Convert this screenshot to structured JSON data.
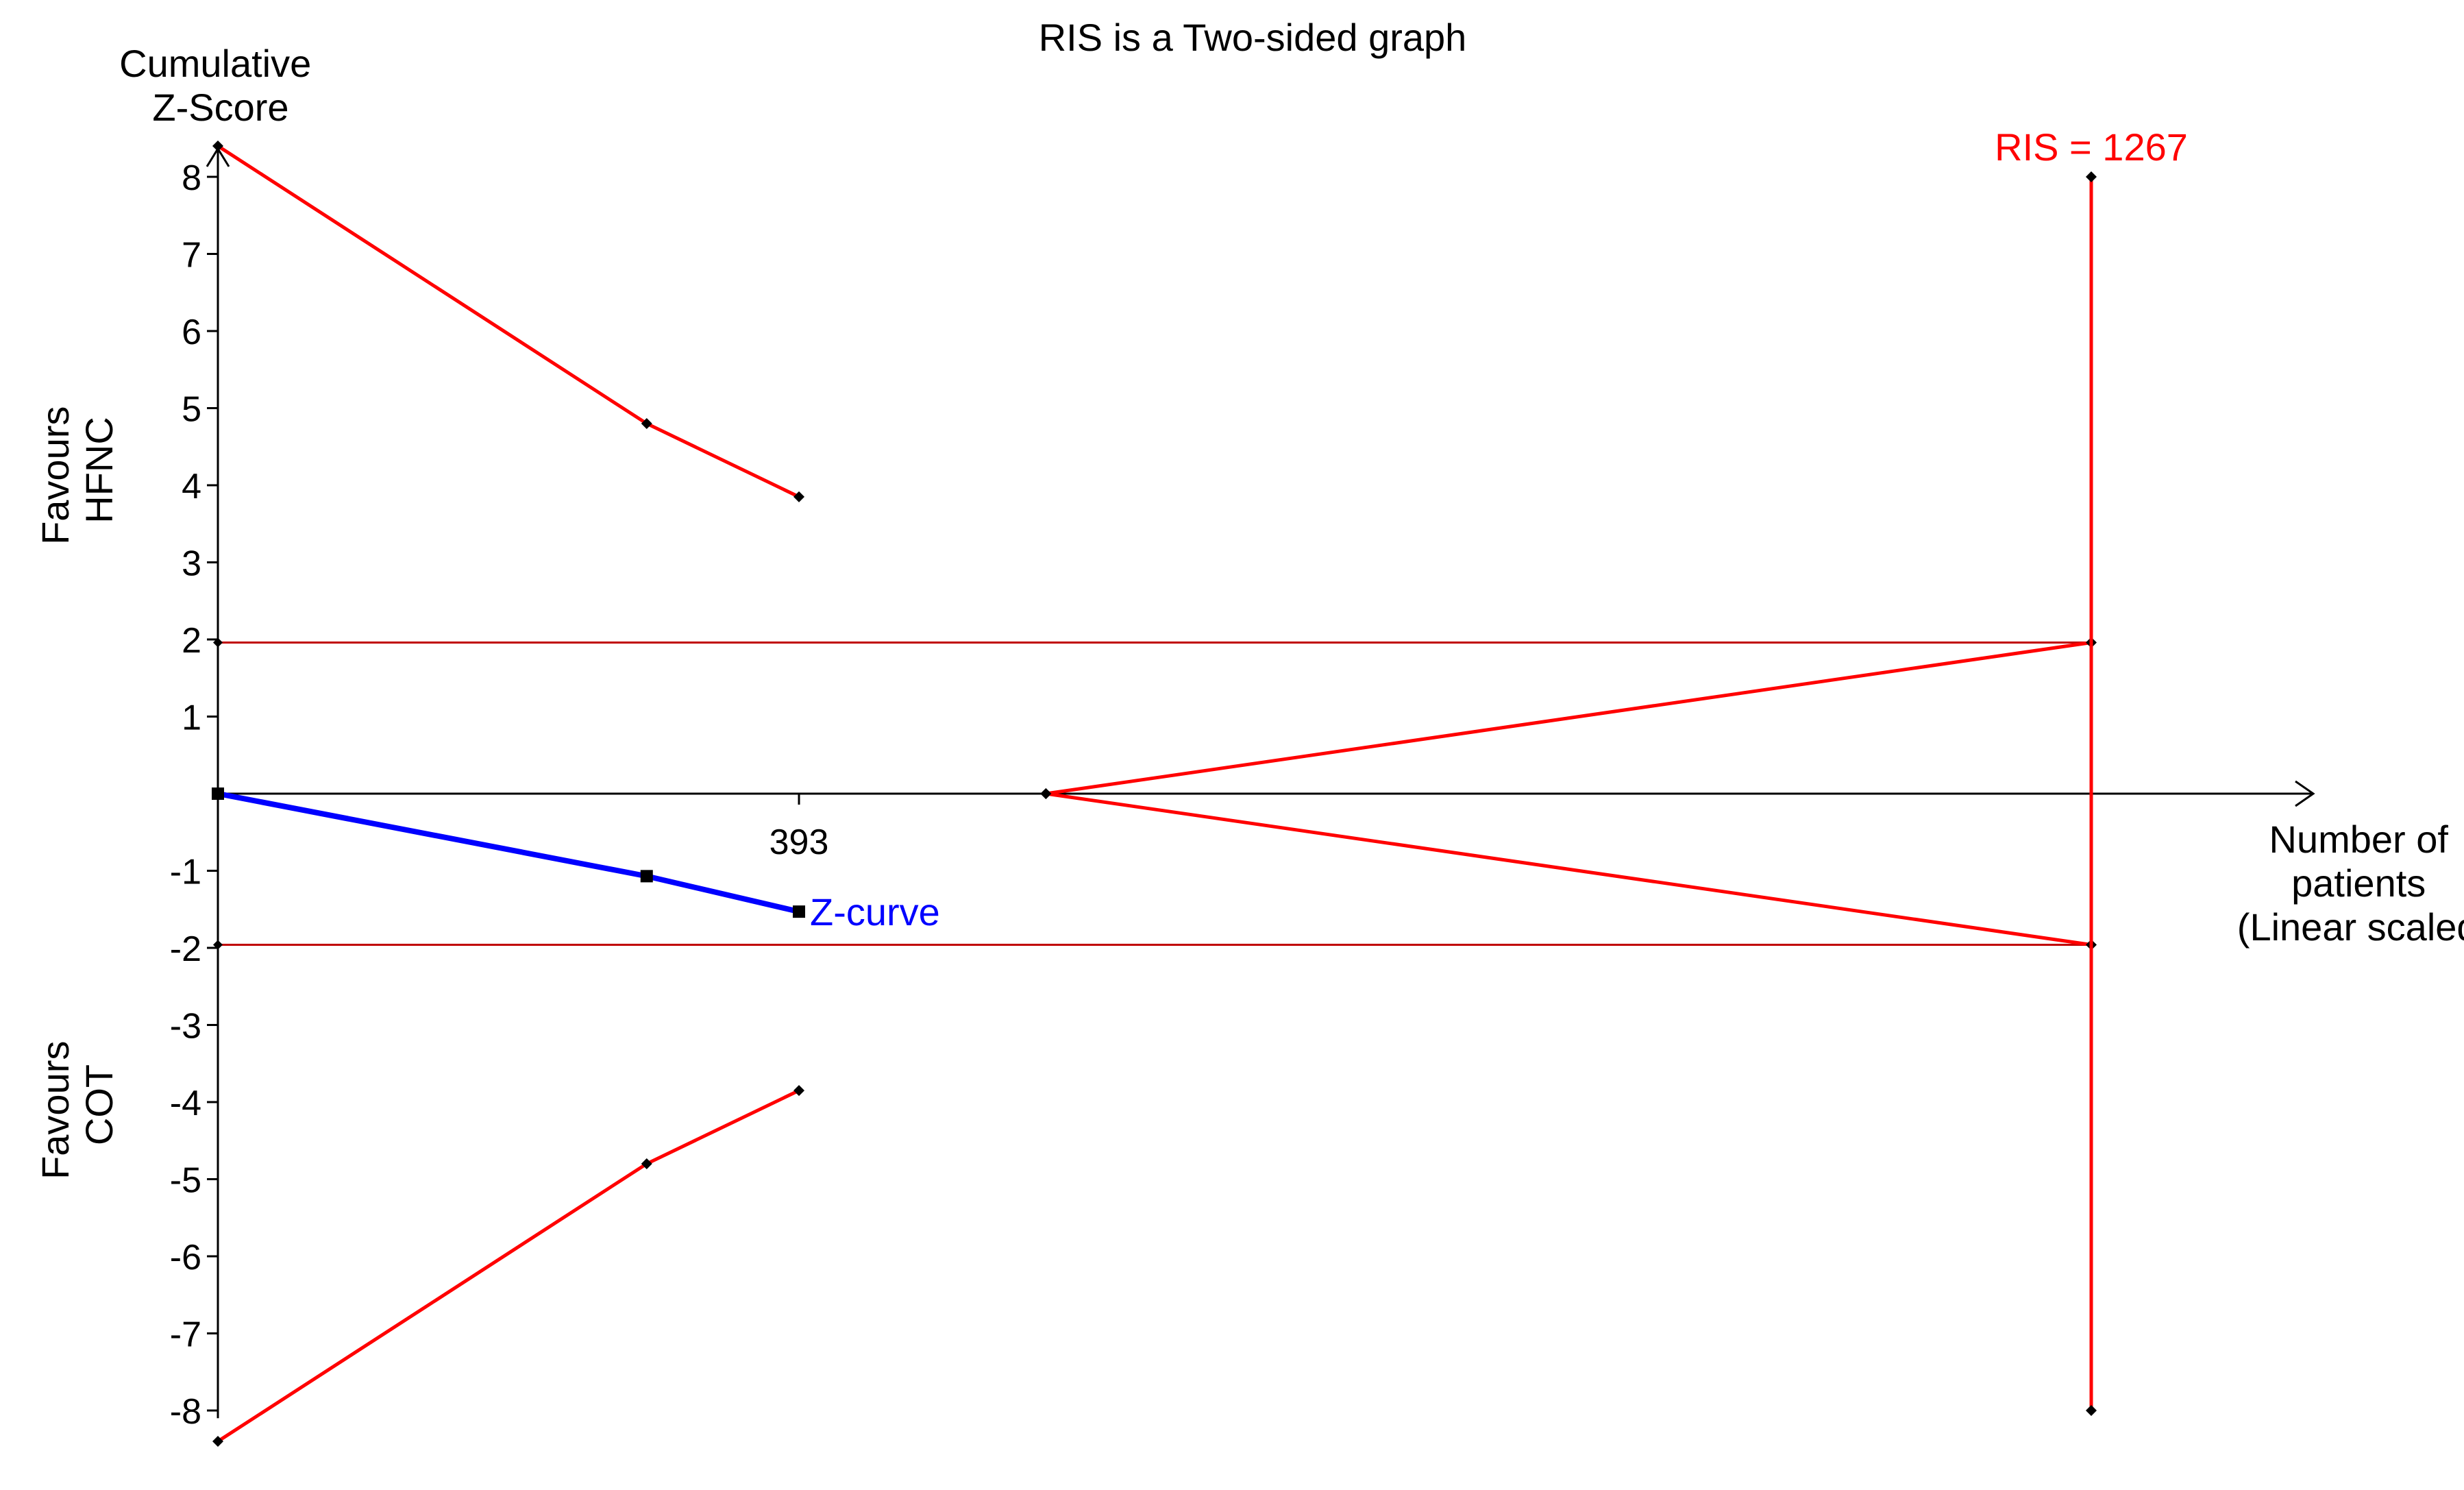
{
  "chart_data": {
    "type": "line",
    "title": "RIS is a Two-sided graph",
    "ylabel_lines": [
      "Cumulative",
      "Z-Score"
    ],
    "xlabel_lines": [
      "Number of",
      "patients",
      "(Linear scaled)"
    ],
    "ylim": [
      -8.4,
      8.4
    ],
    "y_ticks": [
      -8,
      -7,
      -6,
      -5,
      -4,
      -3,
      -2,
      -1,
      1,
      2,
      3,
      4,
      5,
      6,
      7,
      8
    ],
    "x_ticks": [
      {
        "value": 393,
        "label": "393"
      }
    ],
    "favours_top_lines": [
      "Favours",
      "HFNC"
    ],
    "favours_bottom_lines": [
      "Favours",
      "COT"
    ],
    "ris": {
      "value": 1267,
      "label": "RIS = 1267",
      "z_top": 8,
      "z_bottom": -8
    },
    "series": [
      {
        "name": "Z-curve",
        "color": "#0000ff",
        "x": [
          0,
          290,
          393
        ],
        "y": [
          0,
          -1.07,
          -1.53
        ]
      }
    ],
    "boundaries": [
      {
        "kind": "upper_monitoring_boundary",
        "color": "#ff0000",
        "x": [
          0,
          290,
          393
        ],
        "y": [
          8.4,
          4.8,
          3.85
        ]
      },
      {
        "kind": "lower_monitoring_boundary",
        "color": "#ff0000",
        "x": [
          0,
          290,
          393
        ],
        "y": [
          -8.4,
          -4.8,
          -3.85
        ]
      },
      {
        "kind": "upper_futility_boundary",
        "color": "#ff0000",
        "x": [
          560,
          1267
        ],
        "y": [
          0,
          1.96
        ]
      },
      {
        "kind": "lower_futility_boundary",
        "color": "#ff0000",
        "x": [
          560,
          1267
        ],
        "y": [
          0,
          -1.96
        ]
      }
    ],
    "conventional_boundaries": {
      "color": "#c00000",
      "y": [
        1.96,
        -1.96
      ]
    },
    "grid": false,
    "legend": "none"
  }
}
